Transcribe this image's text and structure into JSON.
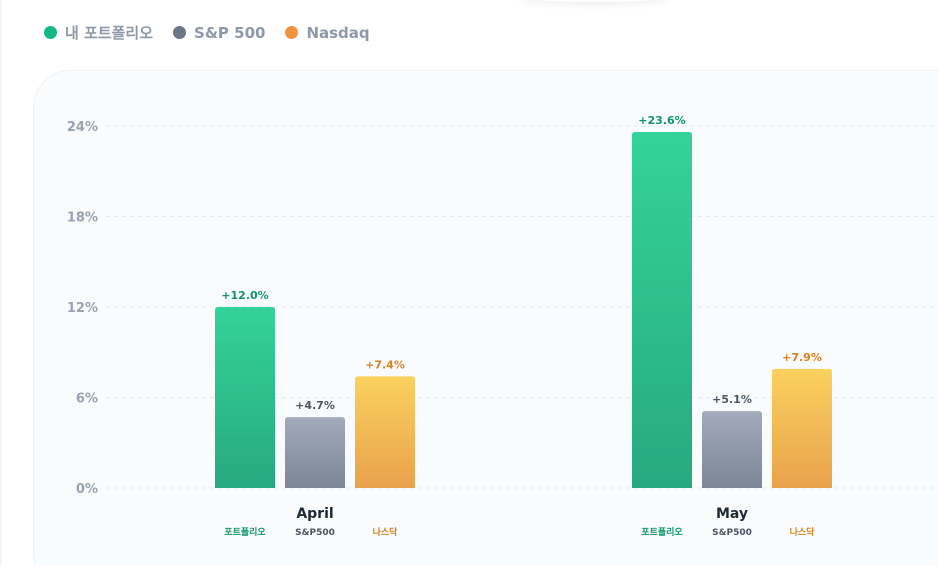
{
  "legend": [
    {
      "label": "내 포트폴리오",
      "color": "#16b981"
    },
    {
      "label": "S&P 500",
      "color": "#6b7689"
    },
    {
      "label": "Nasdaq",
      "color": "#f2923e"
    }
  ],
  "chart_data": {
    "type": "bar",
    "categories": [
      "April",
      "May"
    ],
    "series": [
      {
        "name": "내 포트폴리오",
        "short": "포트폴리오",
        "values": [
          12.0,
          23.6
        ],
        "labels": [
          "+12.0%",
          "+23.6%"
        ],
        "gradient": [
          "#34d399",
          "#27a97f"
        ],
        "label_color": "#119669"
      },
      {
        "name": "S&P 500",
        "short": "S&P500",
        "values": [
          4.7,
          5.1
        ],
        "labels": [
          "+4.7%",
          "+5.1%"
        ],
        "gradient": [
          "#a3abbb",
          "#7c8697"
        ],
        "label_color": "#4b5563"
      },
      {
        "name": "Nasdaq",
        "short": "나스닥",
        "values": [
          7.4,
          7.9
        ],
        "labels": [
          "+7.4%",
          "+7.9%"
        ],
        "gradient": [
          "#fad15e",
          "#e9a24c"
        ],
        "label_color": "#d9821d"
      }
    ],
    "yticks": [
      0,
      6,
      12,
      18,
      24
    ],
    "ytick_labels": [
      "0%",
      "6%",
      "12%",
      "18%",
      "24%"
    ],
    "ylim": [
      0,
      24
    ],
    "grid": true,
    "legend_position": "top-left"
  }
}
